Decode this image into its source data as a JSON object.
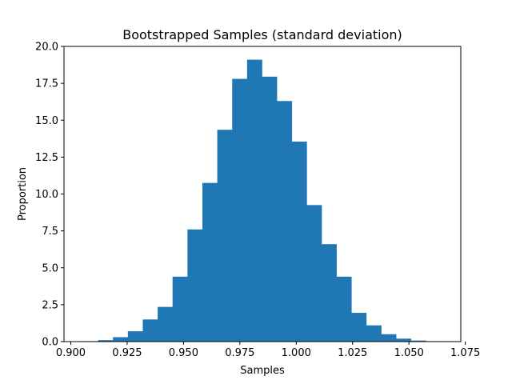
{
  "chart_data": {
    "type": "bar",
    "title": "Bootstrapped Samples (standard deviation)",
    "xlabel": "Samples",
    "ylabel": "Proportion",
    "xlim": [
      0.897,
      1.073
    ],
    "ylim": [
      0,
      20.0
    ],
    "x_ticks": [
      0.9,
      0.925,
      0.95,
      0.975,
      1.0,
      1.025,
      1.05,
      1.075
    ],
    "x_tick_labels": [
      "0.900",
      "0.925",
      "0.950",
      "0.975",
      "1.000",
      "1.025",
      "1.050",
      "1.075"
    ],
    "y_ticks": [
      0.0,
      2.5,
      5.0,
      7.5,
      10.0,
      12.5,
      15.0,
      17.5,
      20.0
    ],
    "y_tick_labels": [
      "0.0",
      "2.5",
      "5.0",
      "7.5",
      "10.0",
      "12.5",
      "15.0",
      "17.5",
      "20.0"
    ],
    "bin_start": 0.9055,
    "bin_width": 0.00661,
    "values": [
      0.03,
      0.1,
      0.3,
      0.7,
      1.5,
      2.35,
      4.4,
      7.6,
      10.75,
      14.35,
      17.8,
      19.1,
      17.95,
      16.3,
      13.55,
      9.25,
      6.6,
      4.4,
      1.95,
      1.1,
      0.5,
      0.2,
      0.07,
      0.03
    ],
    "color": "#1f77b4",
    "grid": false,
    "legend": "none"
  }
}
